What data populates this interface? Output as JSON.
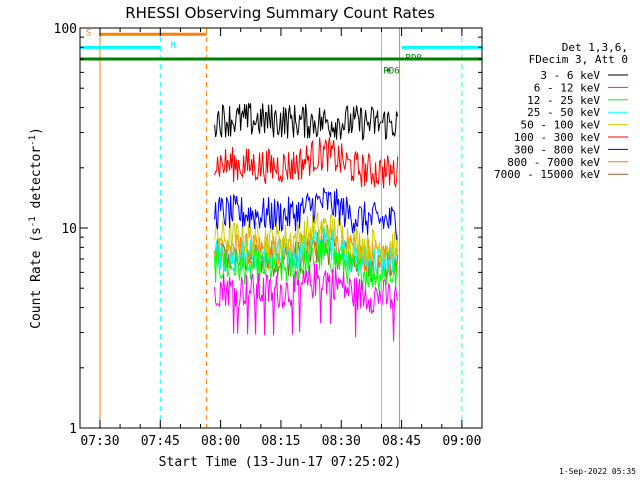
{
  "chart_data": {
    "type": "line",
    "title": "RHESSI Observing Summary Count Rates",
    "xlabel": "Start Time (13-Jun-17 07:25:02)",
    "ylabel": "Count Rate (s⁻¹ detector⁻¹)",
    "ylabel_main": "Count Rate (s",
    "ylabel_sup1": "-1",
    "ylabel_mid": " detector",
    "ylabel_sup2": "-1",
    "ylabel_end": ")",
    "y_scale": "log",
    "ylim": [
      1,
      100
    ],
    "y_ticks": [
      {
        "value": 1,
        "label": "1"
      },
      {
        "value": 10,
        "label": "10"
      },
      {
        "value": 100,
        "label": "100"
      }
    ],
    "xlim": [
      "07:25:02",
      "09:05:00"
    ],
    "x_ticks": [
      {
        "time": "07:30",
        "label": "07:30"
      },
      {
        "time": "07:45",
        "label": "07:45"
      },
      {
        "time": "08:00",
        "label": "08:00"
      },
      {
        "time": "08:15",
        "label": "08:15"
      },
      {
        "time": "08:30",
        "label": "08:30"
      },
      {
        "time": "08:45",
        "label": "08:45"
      },
      {
        "time": "09:00",
        "label": "09:00"
      }
    ],
    "legend_header": [
      "Det 1,3,6,",
      "FDecim 3, Att 0"
    ],
    "series": [
      {
        "name": "3 - 6 keV",
        "color": "#000000",
        "start": "07:58:30",
        "end": "08:44:00",
        "level": 35,
        "profile": "flat"
      },
      {
        "name": "6 - 12 keV",
        "color": "#ff00ff",
        "start": "07:58:30",
        "end": "08:44:00",
        "level": 5.0,
        "profile": "bump"
      },
      {
        "name": "12 - 25 keV",
        "color": "#00ff00",
        "start": "07:58:30",
        "end": "08:44:00",
        "level": 6.5,
        "profile": "bump"
      },
      {
        "name": "25 - 50 keV",
        "color": "#00ffff",
        "start": "07:58:30",
        "end": "08:44:00",
        "level": 7.5,
        "profile": "bump"
      },
      {
        "name": "50 - 100 keV",
        "color": "#cccc00",
        "start": "07:58:30",
        "end": "08:44:00",
        "level": 9.0,
        "profile": "bump"
      },
      {
        "name": "100 - 300 keV",
        "color": "#ff0000",
        "start": "07:58:30",
        "end": "08:44:00",
        "level": 21,
        "profile": "bump"
      },
      {
        "name": "300 - 800 keV",
        "color": "#0000ff",
        "start": "07:58:30",
        "end": "08:44:00",
        "level": 12,
        "profile": "bump"
      },
      {
        "name": "800 - 7000 keV",
        "color": "#ff8000",
        "start": "07:58:30",
        "end": "08:44:00",
        "level": 7.8,
        "profile": "bump"
      },
      {
        "name": "7000 - 15000 keV",
        "color": "#996633",
        "start": "07:58:30",
        "end": "08:44:00",
        "level": 7.2,
        "profile": "bump"
      }
    ],
    "annotations": [
      {
        "text": "S",
        "color": "#ff8000",
        "time": "07:26:30",
        "y_value": 96
      },
      {
        "text": "N",
        "color": "#00ffff",
        "time": "07:47:30",
        "y_value": 83
      },
      {
        "text": "RD0",
        "color": "#008000",
        "time": "08:46:00",
        "y_value": 72
      },
      {
        "text": "RD6",
        "color": "#008000",
        "time": "08:40:30",
        "y_value": 62
      }
    ],
    "segments": [
      {
        "color": "#ff8000",
        "width": 3,
        "start": "07:30:00",
        "end": "07:56:30",
        "y_value": 93
      },
      {
        "color": "#00ffff",
        "width": 3,
        "start": "07:25:02",
        "end": "07:45:00",
        "y_value": 80
      },
      {
        "color": "#00ffff",
        "width": 3,
        "start": "08:45:00",
        "end": "09:05:00",
        "y_value": 80
      },
      {
        "color": "#008000",
        "width": 3,
        "start": "07:25:02",
        "end": "09:05:00",
        "y_value": 70
      }
    ],
    "vlines": [
      {
        "time": "07:30:00",
        "color": "#ff8000",
        "dash": false
      },
      {
        "time": "07:45:00",
        "color": "#00ffff",
        "dash": true
      },
      {
        "time": "07:56:30",
        "color": "#ff8000",
        "dash": true
      },
      {
        "time": "08:40:00",
        "color": "#00ffff",
        "dash": false
      },
      {
        "time": "08:44:30",
        "color": "#ff8000",
        "dash": false
      },
      {
        "time": "09:00:00",
        "color": "#00ffff",
        "dash": true
      }
    ],
    "footer_date": "1-Sep-2022 05:35"
  }
}
